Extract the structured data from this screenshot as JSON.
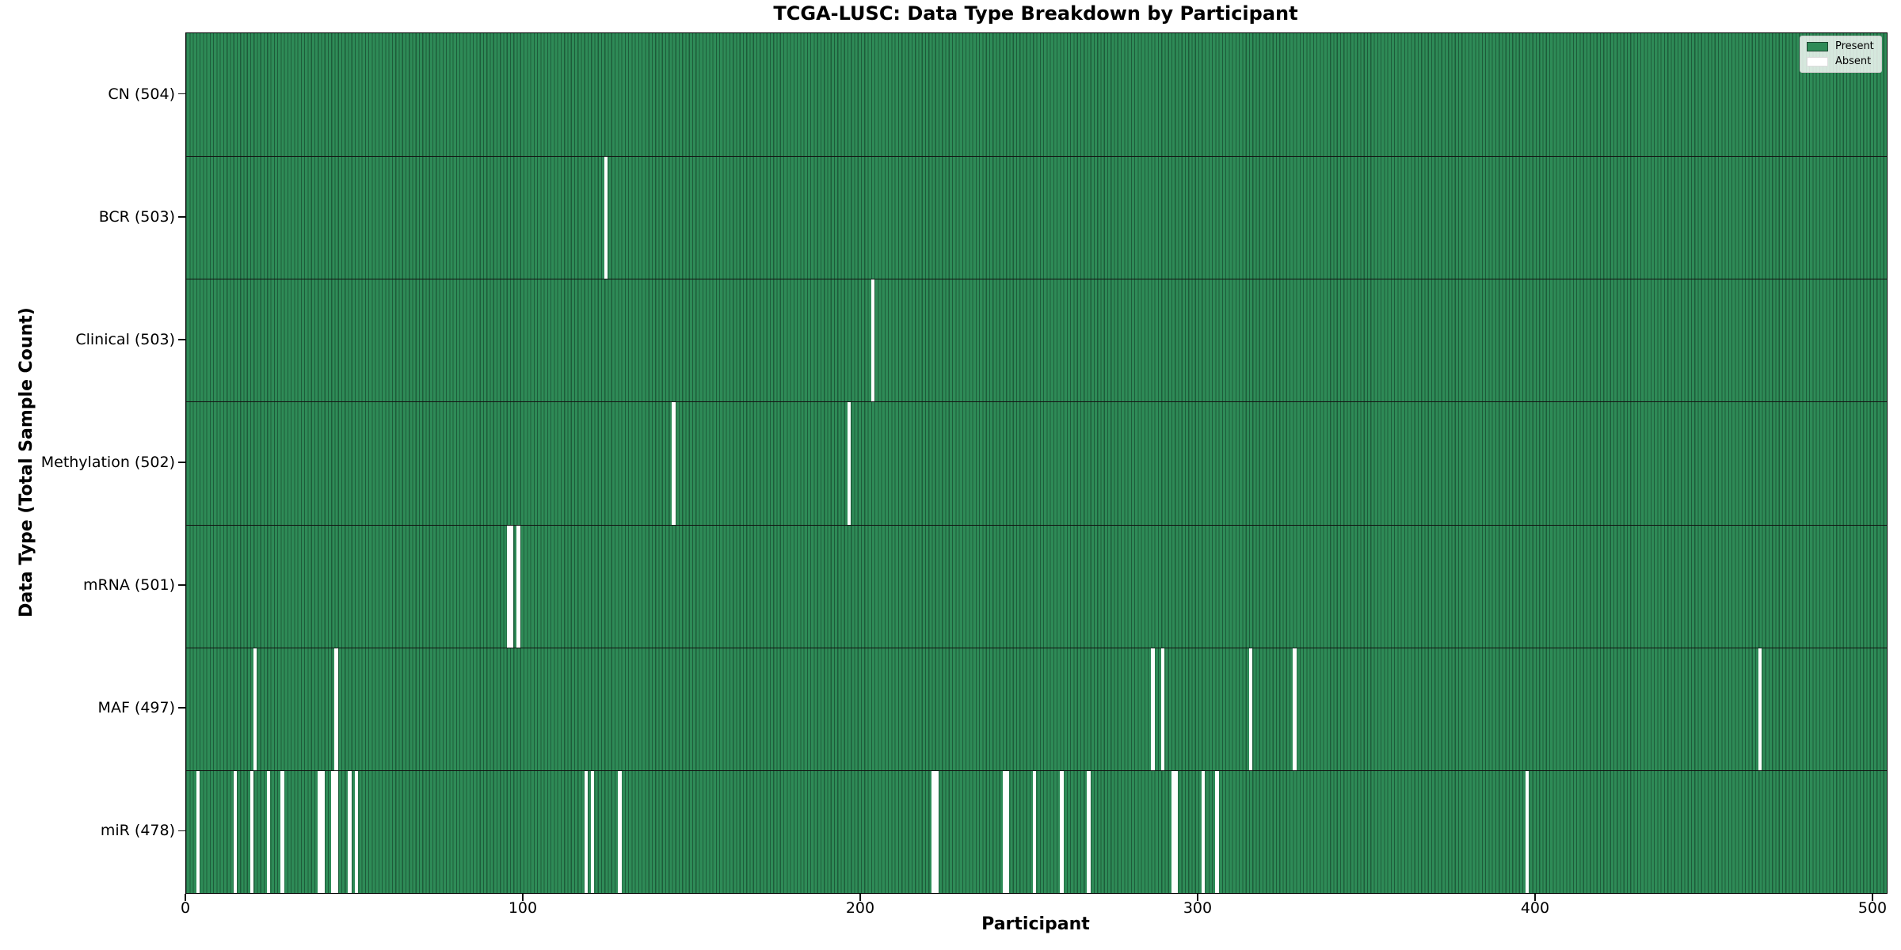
{
  "chart_data": {
    "type": "heatmap",
    "title": "TCGA-LUSC: Data Type Breakdown by Participant",
    "xlabel": "Participant",
    "ylabel": "Data Type (Total Sample Count)",
    "x_ticks": [
      0,
      100,
      200,
      300,
      400,
      500
    ],
    "x_range": [
      0,
      504
    ],
    "n_participants": 504,
    "grid": false,
    "legend_position": "upper-right",
    "legend": [
      {
        "label": "Present",
        "color": "#2e8b57"
      },
      {
        "label": "Absent",
        "color": "#ffffff"
      }
    ],
    "colors": {
      "present": "#2e8b57",
      "bar_edge": "#1d5c3a",
      "absent": "#ffffff",
      "frame": "#000000"
    },
    "rows": [
      {
        "data_type": "CN",
        "label": "CN (504)",
        "total_samples": 504,
        "absent_participants": []
      },
      {
        "data_type": "BCR",
        "label": "BCR (503)",
        "total_samples": 503,
        "absent_participants": [
          124
        ]
      },
      {
        "data_type": "Clinical",
        "label": "Clinical (503)",
        "total_samples": 503,
        "absent_participants": [
          203
        ]
      },
      {
        "data_type": "Methylation",
        "label": "Methylation (502)",
        "total_samples": 502,
        "absent_participants": [
          144,
          196
        ]
      },
      {
        "data_type": "mRNA",
        "label": "mRNA (501)",
        "total_samples": 501,
        "absent_participants": [
          95,
          96,
          98
        ]
      },
      {
        "data_type": "MAF",
        "label": "MAF (497)",
        "total_samples": 497,
        "absent_participants": [
          20,
          44,
          286,
          289,
          315,
          328,
          466
        ]
      },
      {
        "data_type": "miR",
        "label": "miR (478)",
        "total_samples": 478,
        "absent_participants": [
          3,
          14,
          19,
          24,
          28,
          39,
          40,
          43,
          44,
          48,
          50,
          118,
          120,
          128,
          221,
          222,
          242,
          243,
          251,
          259,
          267,
          292,
          293,
          301,
          305,
          397
        ]
      }
    ]
  }
}
